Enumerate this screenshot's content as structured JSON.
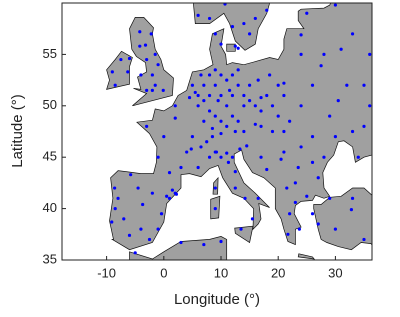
{
  "chart_data": {
    "type": "scatter",
    "xlabel": "Longitude (°)",
    "ylabel": "Latitude (°)",
    "xlim": [
      -17.8,
      36.4
    ],
    "ylim": [
      35,
      60
    ],
    "xticks": [
      -10,
      0,
      10,
      20,
      30
    ],
    "yticks": [
      35,
      40,
      45,
      50,
      55
    ],
    "color": "#0000ff",
    "x": [
      6,
      7,
      8,
      9,
      10,
      11,
      12,
      13,
      14,
      7,
      8,
      9,
      10,
      11,
      12,
      13,
      8,
      9,
      10,
      11,
      12,
      13,
      7,
      8.5,
      6,
      9.5,
      11.5,
      14,
      15,
      16,
      17,
      16,
      14,
      12.5,
      10,
      15,
      16.5,
      18,
      5,
      5.5,
      4.5,
      6.5,
      17,
      19,
      20,
      18.5,
      21,
      2,
      0,
      4,
      -1,
      3,
      5,
      1,
      6,
      -3,
      2,
      4.8,
      6.5,
      7.5,
      8.5,
      9,
      10,
      11,
      12,
      9.2,
      8,
      11.3,
      12.5,
      12.5,
      14.2,
      16.5,
      15.5,
      13.5,
      9,
      9,
      13.3,
      14.5,
      -3.7,
      -6,
      -8.6,
      -5.8,
      -2,
      2,
      0.5,
      -0.4,
      -1,
      -4,
      -7,
      -8.5,
      -4.5,
      1.5,
      2.2,
      1,
      -9.1,
      -8,
      -2.5,
      -0.1,
      -2,
      -1.5,
      -3.2,
      -4.2,
      -1,
      -3,
      -2.2,
      -6.3,
      -8.5,
      -7.5,
      -4,
      -4.2,
      -3,
      -2,
      -6,
      -9,
      -1.5,
      10.7,
      12,
      13,
      18,
      15,
      10,
      9,
      12.5,
      16,
      6,
      8,
      14,
      21,
      24,
      26,
      30.5,
      28,
      24,
      27.5,
      24,
      25,
      30,
      32,
      35,
      30,
      26,
      28,
      24,
      21,
      23.5,
      26,
      27,
      23,
      21.5,
      20.5,
      18,
      17,
      19,
      21,
      22,
      20,
      17,
      23,
      22,
      23.7,
      21.7,
      25,
      27,
      29,
      32.8,
      35,
      30,
      33,
      26,
      34,
      35,
      33,
      36,
      31,
      29,
      33,
      36,
      3,
      -5,
      10,
      7
    ],
    "y": [
      51,
      50.5,
      51,
      52,
      51,
      50,
      51,
      52,
      51,
      52,
      53,
      53.5,
      53,
      52.5,
      53,
      53.5,
      49.5,
      49,
      48.5,
      48,
      49,
      48.5,
      48.5,
      47.8,
      50,
      50.5,
      51.5,
      50,
      50.5,
      50,
      49.5,
      48.2,
      47.5,
      47.5,
      47.3,
      52,
      52.5,
      51,
      52,
      51.3,
      50.8,
      53,
      50.8,
      50,
      52,
      53,
      51,
      48.8,
      47,
      45.5,
      45,
      44,
      47,
      43.5,
      44,
      48,
      50,
      45.8,
      46,
      46.5,
      47,
      45.5,
      45,
      45.4,
      45,
      45.5,
      45,
      44.5,
      43.6,
      42,
      41,
      41,
      39,
      38,
      40,
      42,
      45.8,
      46.1,
      40.4,
      37.4,
      42,
      43.3,
      41.5,
      41.5,
      41.2,
      39.5,
      38,
      38,
      39,
      40,
      42,
      41.8,
      41.4,
      41,
      38.7,
      41,
      37,
      51.5,
      53,
      52,
      55.9,
      57.2,
      54,
      51.5,
      57,
      53.3,
      52,
      54.5,
      53,
      55.8,
      54.5,
      51.5,
      54.6,
      53.3,
      55,
      59.9,
      57.7,
      55.6,
      59.3,
      57,
      56,
      57,
      55.8,
      58.5,
      58.8,
      58.5,
      58,
      52.2,
      50,
      52,
      50.5,
      55,
      55,
      53.9,
      56.9,
      59,
      59.8,
      52,
      48,
      47,
      47,
      45,
      46,
      45.5,
      44,
      44.5,
      43,
      42.5,
      42,
      44.8,
      43.8,
      45,
      47.5,
      47.5,
      48.5,
      49,
      48,
      40.6,
      39.5,
      38,
      37.5,
      41.2,
      38.5,
      41,
      39.9,
      37,
      38,
      41,
      39.5,
      45,
      52,
      57,
      55,
      55.5,
      49,
      47.5,
      50,
      36.7,
      35.7,
      36.8,
      36.5
    ]
  }
}
